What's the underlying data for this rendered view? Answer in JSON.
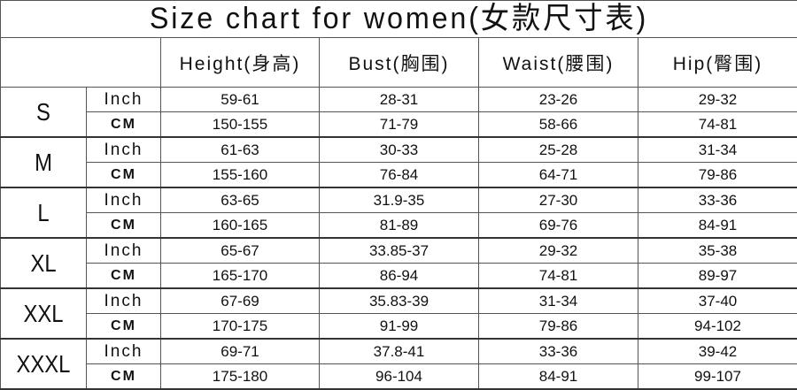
{
  "title": "Size chart for women(女款尺寸表)",
  "headers": [
    "Height(身高)",
    "Bust(胸围)",
    "Waist(腰围)",
    "Hip(臀围)"
  ],
  "sizes": [
    {
      "size": "S",
      "inch": [
        "59-61",
        "28-31",
        "23-26",
        "29-32"
      ],
      "cm": [
        "150-155",
        "71-79",
        "58-66",
        "74-81"
      ]
    },
    {
      "size": "M",
      "inch": [
        "61-63",
        "30-33",
        "25-28",
        "31-34"
      ],
      "cm": [
        "155-160",
        "76-84",
        "64-71",
        "79-86"
      ]
    },
    {
      "size": "L",
      "inch": [
        "63-65",
        "31.9-35",
        "27-30",
        "33-36"
      ],
      "cm": [
        "160-165",
        "81-89",
        "69-76",
        "84-91"
      ]
    },
    {
      "size": "XL",
      "inch": [
        "65-67",
        "33.85-37",
        "29-32",
        "35-38"
      ],
      "cm": [
        "165-170",
        "86-94",
        "74-81",
        "89-97"
      ]
    },
    {
      "size": "XXL",
      "inch": [
        "67-69",
        "35.83-39",
        "31-34",
        "37-40"
      ],
      "cm": [
        "170-175",
        "91-99",
        "79-86",
        "94-102"
      ]
    },
    {
      "size": "XXXL",
      "inch": [
        "69-71",
        "37.8-41",
        "33-36",
        "39-42"
      ],
      "cm": [
        "175-180",
        "96-104",
        "84-91",
        "99-107"
      ]
    }
  ],
  "units": {
    "inch": "Inch",
    "cm": "CM"
  }
}
